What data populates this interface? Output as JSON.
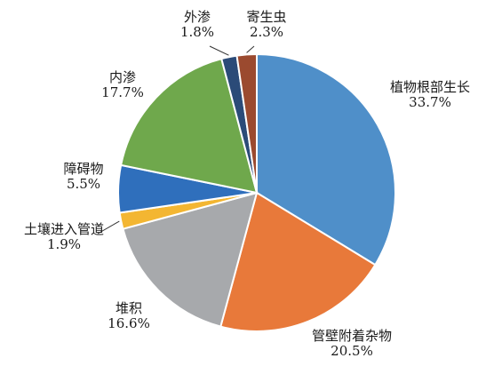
{
  "chart_data": {
    "type": "pie",
    "title": "",
    "slices": [
      {
        "name": "植物根部生长",
        "value": 33.7,
        "label": "33.7%",
        "color": "#4f8fc9"
      },
      {
        "name": "管壁附着杂物",
        "value": 20.5,
        "label": "20.5%",
        "color": "#e8793a"
      },
      {
        "name": "堆积",
        "value": 16.6,
        "label": "16.6%",
        "color": "#a7a9ac"
      },
      {
        "name": "土壤进入管道",
        "value": 1.9,
        "label": "1.9%",
        "color": "#f3b632"
      },
      {
        "name": "障碍物",
        "value": 5.5,
        "label": "5.5%",
        "color": "#2f6fbc"
      },
      {
        "name": "内渗",
        "value": 17.7,
        "label": "17.7%",
        "color": "#6fa84c"
      },
      {
        "name": "外渗",
        "value": 1.8,
        "label": "1.8%",
        "color": "#2b4b78"
      },
      {
        "name": "寄生虫",
        "value": 2.3,
        "label": "2.3%",
        "color": "#9b4a2f"
      }
    ],
    "start_angle": "12 o'clock",
    "direction": "clockwise",
    "legend": "none; labels placed outside the pie with leader lines"
  }
}
